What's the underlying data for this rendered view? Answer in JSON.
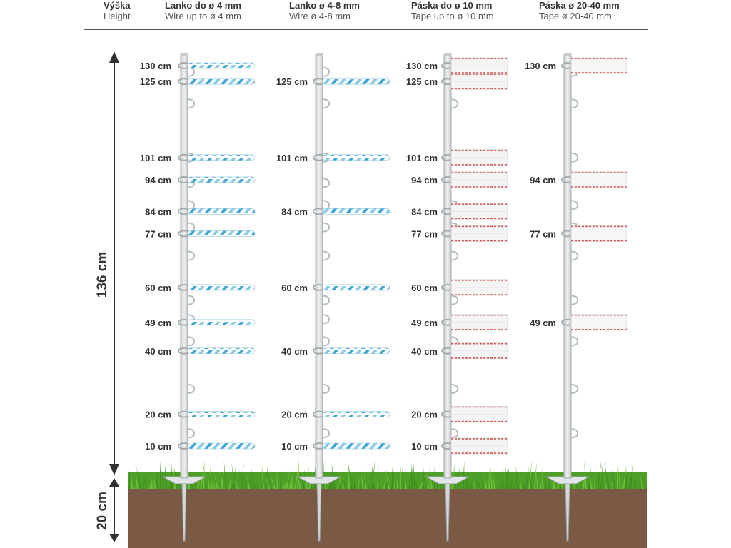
{
  "header": {
    "height": {
      "title": "Výška",
      "subtitle": "Height"
    },
    "columns": [
      {
        "title": "Lanko do ø 4 mm",
        "subtitle": "Wire up to ø 4 mm"
      },
      {
        "title": "Lanko ø 4-8 mm",
        "subtitle": "Wire ø 4-8 mm"
      },
      {
        "title": "Páska do ø 10 mm",
        "subtitle": "Tape up to ø 10 mm"
      },
      {
        "title": "Páska ø 20-40 mm",
        "subtitle": "Tape ø 20-40 mm"
      }
    ]
  },
  "dimensions": {
    "above_ground": "136 cm",
    "below_ground": "20 cm"
  },
  "posts": [
    {
      "kind": "wire",
      "heights": [
        130,
        125,
        101,
        94,
        84,
        77,
        60,
        49,
        40,
        20,
        10
      ],
      "labels": [
        "130 cm",
        "125 cm",
        "101 cm",
        "94 cm",
        "84 cm",
        "77 cm",
        "60 cm",
        "49 cm",
        "40 cm",
        "20 cm",
        "10 cm"
      ]
    },
    {
      "kind": "wire",
      "heights": [
        125,
        101,
        84,
        60,
        40,
        20,
        10
      ],
      "labels": [
        "125 cm",
        "101 cm",
        "84 cm",
        "60 cm",
        "40 cm",
        "20 cm",
        "10 cm"
      ]
    },
    {
      "kind": "tape",
      "heights": [
        130,
        125,
        101,
        94,
        84,
        77,
        60,
        49,
        40,
        20,
        10
      ],
      "labels": [
        "130 cm",
        "125 cm",
        "101 cm",
        "94 cm",
        "84 cm",
        "77 cm",
        "60 cm",
        "49 cm",
        "40 cm",
        "20 cm",
        "10 cm"
      ]
    },
    {
      "kind": "wide-tape",
      "heights": [
        130,
        94,
        77,
        49
      ],
      "labels": [
        "130 cm",
        "94 cm",
        "77 cm",
        "49 cm"
      ]
    }
  ],
  "colors": {
    "soil": "#7a5a45",
    "grass": "#5fb52f",
    "wire_blue": "#3aa6d6",
    "tape_red": "#d9534f",
    "post": "#dfe3e6"
  }
}
